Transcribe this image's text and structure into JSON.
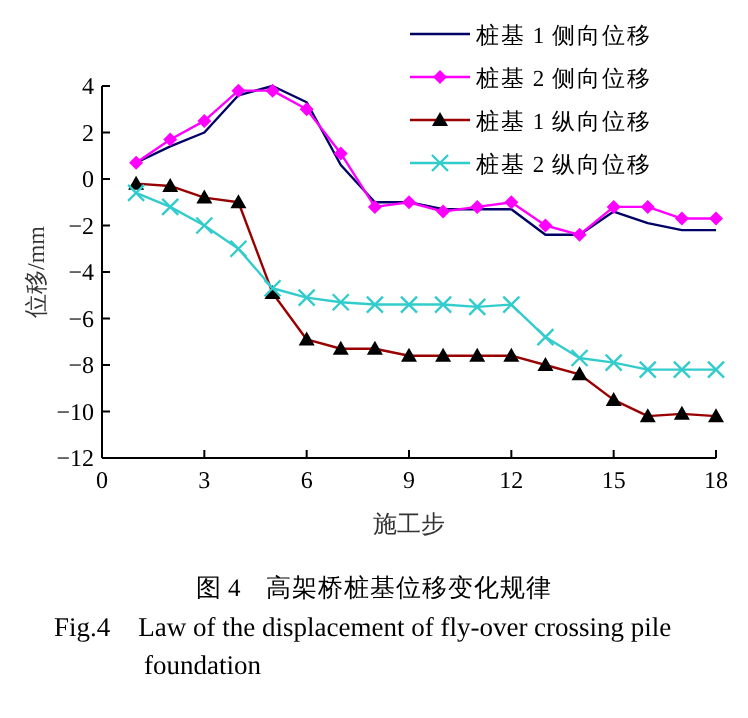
{
  "chart_data": {
    "type": "line",
    "xlabel": "施工步",
    "ylabel": "位移/mm",
    "x": [
      1,
      2,
      3,
      4,
      5,
      6,
      7,
      8,
      9,
      10,
      11,
      12,
      13,
      14,
      15,
      16,
      17,
      18
    ],
    "series": [
      {
        "name": "桩基 1 侧向位移",
        "color": "#000066",
        "marker": "none",
        "values": [
          0.7,
          1.4,
          2.0,
          3.6,
          4.0,
          3.3,
          0.6,
          -1.0,
          -1.0,
          -1.3,
          -1.3,
          -1.3,
          -2.4,
          -2.4,
          -1.4,
          -1.9,
          -2.2,
          -2.2
        ]
      },
      {
        "name": "桩基 2 侧向位移",
        "color": "#ff00ff",
        "marker": "diamond",
        "values": [
          0.7,
          1.7,
          2.5,
          3.8,
          3.8,
          3.0,
          1.1,
          -1.2,
          -1.0,
          -1.4,
          -1.2,
          -1.0,
          -2.0,
          -2.4,
          -1.2,
          -1.2,
          -1.7,
          -1.7
        ]
      },
      {
        "name": "桩基 1 纵向位移",
        "color": "#990000",
        "marker": "triangle",
        "values": [
          -0.2,
          -0.3,
          -0.8,
          -1.0,
          -4.9,
          -6.9,
          -7.3,
          -7.3,
          -7.6,
          -7.6,
          -7.6,
          -7.6,
          -8.0,
          -8.4,
          -9.5,
          -10.2,
          -10.1,
          -10.2
        ]
      },
      {
        "name": "桩基 2 纵向位移",
        "color": "#33cccc",
        "marker": "cross",
        "values": [
          -0.6,
          -1.2,
          -2.0,
          -3.0,
          -4.7,
          -5.1,
          -5.3,
          -5.4,
          -5.4,
          -5.4,
          -5.5,
          -5.4,
          -6.8,
          -7.7,
          -7.9,
          -8.2,
          -8.2,
          -8.2
        ]
      }
    ],
    "xlim": [
      0,
      18
    ],
    "xticks": [
      0,
      3,
      6,
      9,
      12,
      15,
      18
    ],
    "ylim": [
      -12,
      4
    ],
    "yticks": [
      -12,
      -10,
      -8,
      -6,
      -4,
      -2,
      0,
      2,
      4
    ],
    "legend": "top right",
    "grid": false,
    "annotations": [
      "图 4　高架桥桩基位移变化规律",
      "Fig.4　Law of the displacement of fly-over crossing pile foundation"
    ]
  }
}
